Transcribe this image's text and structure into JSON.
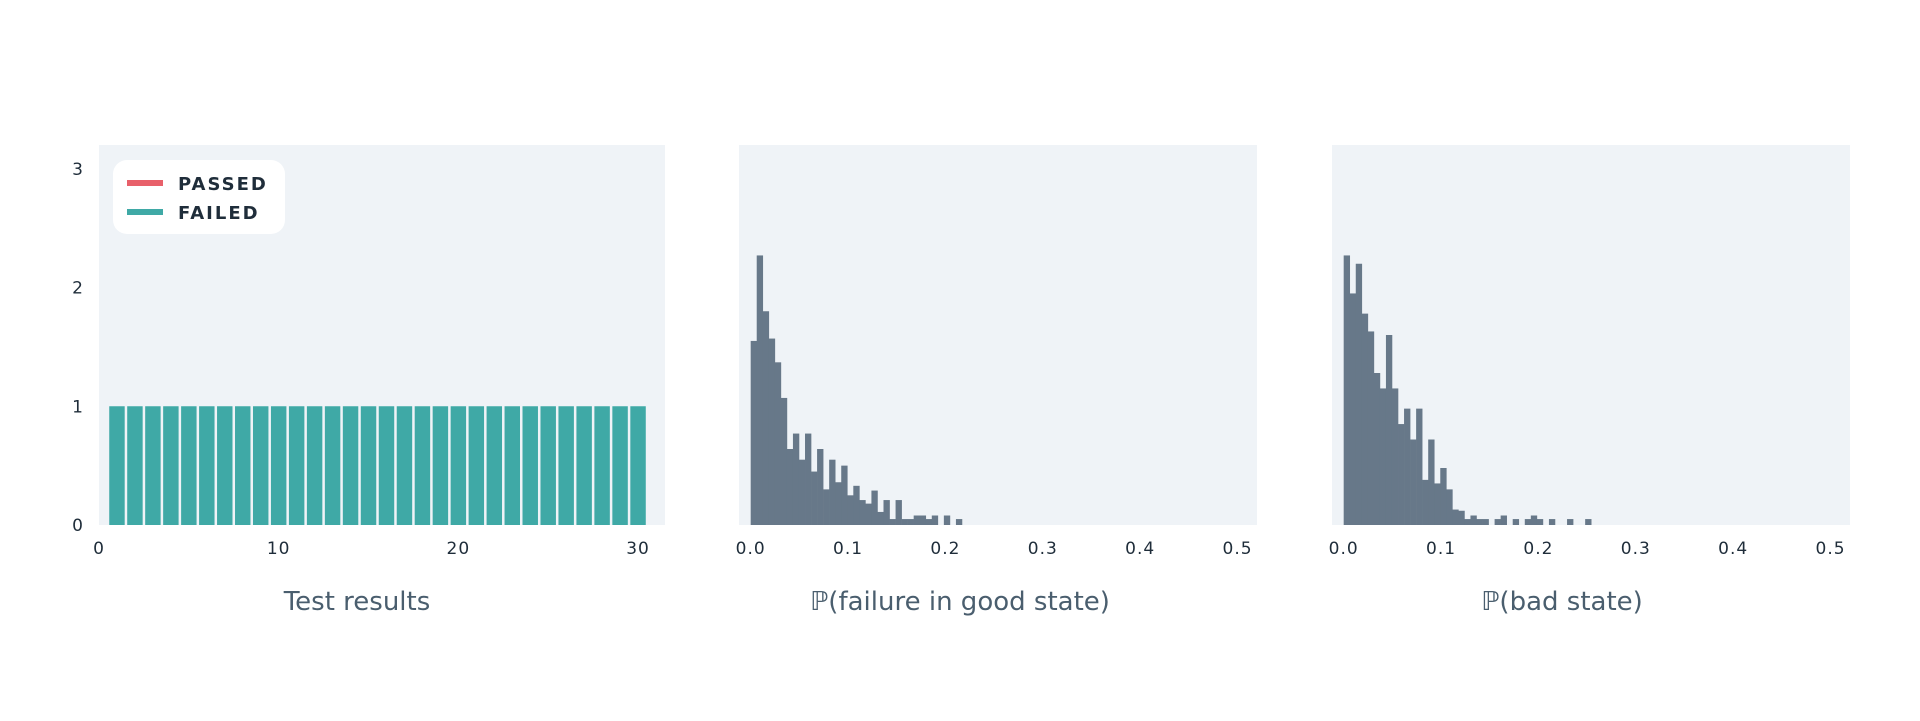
{
  "chart_data": [
    {
      "type": "bar",
      "xlabel": "Test results",
      "xlim": [
        0,
        31.5
      ],
      "ylim": [
        0,
        3.2
      ],
      "xticks": [
        "0",
        "10",
        "20",
        "30"
      ],
      "xtick_values": [
        0,
        10,
        20,
        30
      ],
      "yticks": [
        "0",
        "1",
        "2",
        "3"
      ],
      "ytick_values": [
        0,
        1,
        2,
        3
      ],
      "x": [
        1,
        2,
        3,
        4,
        5,
        6,
        7,
        8,
        9,
        10,
        11,
        12,
        13,
        14,
        15,
        16,
        17,
        18,
        19,
        20,
        21,
        22,
        23,
        24,
        25,
        26,
        27,
        28,
        29,
        30
      ],
      "series": [
        {
          "name": "PASSED",
          "color": "#e8606a",
          "values": [
            0,
            0,
            0,
            0,
            0,
            0,
            0,
            0,
            0,
            0,
            0,
            0,
            0,
            0,
            0,
            0,
            0,
            0,
            0,
            0,
            0,
            0,
            0,
            0,
            0,
            0,
            0,
            0,
            0,
            0
          ]
        },
        {
          "name": "FAILED",
          "color": "#3fa9a6",
          "values": [
            1,
            1,
            1,
            1,
            1,
            1,
            1,
            1,
            1,
            1,
            1,
            1,
            1,
            1,
            1,
            1,
            1,
            1,
            1,
            1,
            1,
            1,
            1,
            1,
            1,
            1,
            1,
            1,
            1,
            1
          ]
        }
      ],
      "legend": "top-left",
      "grid": false
    },
    {
      "type": "bar",
      "subtype": "histogram",
      "xlabel": "ℙ(failure in good state)",
      "xlim": [
        -0.012,
        0.52
      ],
      "ylim": [
        0,
        3.2
      ],
      "xticks": [
        "0.0",
        "0.1",
        "0.2",
        "0.3",
        "0.4",
        "0.5"
      ],
      "xtick_values": [
        0,
        0.1,
        0.2,
        0.3,
        0.4,
        0.5
      ],
      "bin_start": 0.0,
      "bin_width": 0.0062,
      "values": [
        1.55,
        2.27,
        1.8,
        1.57,
        1.37,
        1.07,
        0.64,
        0.77,
        0.55,
        0.77,
        0.45,
        0.64,
        0.3,
        0.55,
        0.36,
        0.5,
        0.25,
        0.33,
        0.21,
        0.18,
        0.29,
        0.11,
        0.21,
        0.05,
        0.21,
        0.05,
        0.05,
        0.08,
        0.08,
        0.05,
        0.08,
        0,
        0.08,
        0,
        0.05
      ],
      "color": "#677889",
      "grid": false
    },
    {
      "type": "bar",
      "subtype": "histogram",
      "xlabel": "ℙ(bad state)",
      "xlim": [
        -0.012,
        0.52
      ],
      "ylim": [
        0,
        3.2
      ],
      "xticks": [
        "0.0",
        "0.1",
        "0.2",
        "0.3",
        "0.4",
        "0.5"
      ],
      "xtick_values": [
        0,
        0.1,
        0.2,
        0.3,
        0.4,
        0.5
      ],
      "bin_start": 0.0,
      "bin_width": 0.0062,
      "values": [
        2.27,
        1.95,
        2.2,
        1.78,
        1.63,
        1.28,
        1.15,
        1.6,
        1.15,
        0.85,
        0.98,
        0.72,
        0.98,
        0.38,
        0.72,
        0.35,
        0.48,
        0.3,
        0.13,
        0.12,
        0.05,
        0.08,
        0.05,
        0.05,
        0,
        0.05,
        0.08,
        0,
        0.05,
        0,
        0.05,
        0.08,
        0.05,
        0,
        0.05,
        0,
        0,
        0.05,
        0,
        0,
        0.05
      ],
      "color": "#677889",
      "grid": false
    }
  ]
}
